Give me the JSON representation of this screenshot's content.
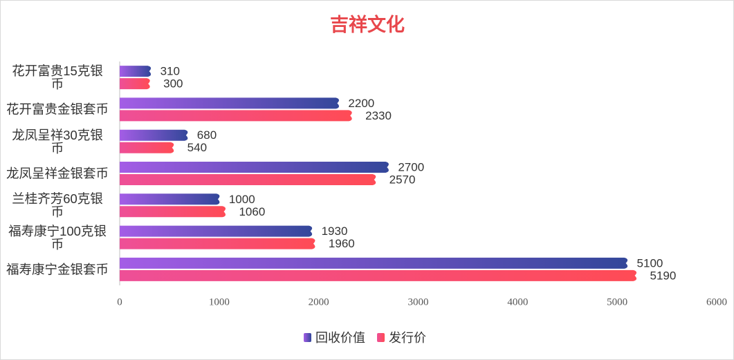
{
  "chart_data": {
    "type": "bar",
    "orientation": "horizontal",
    "title": "吉祥文化",
    "categories": [
      "花开富贵15克银币",
      "花开富贵金银套币",
      "龙凤呈祥30克银币",
      "龙凤呈祥金银套币",
      "兰桂齐芳60克银币",
      "福寿康宁100克银币",
      "福寿康宁金银套币"
    ],
    "series": [
      {
        "name": "回收价值",
        "gradient": [
          "#a45de6",
          "#33479a"
        ],
        "values": [
          310,
          2200,
          680,
          2700,
          1000,
          1930,
          5100
        ]
      },
      {
        "name": "发行价",
        "gradient": [
          "#ee4f97",
          "#ff4b55"
        ],
        "values": [
          300,
          2330,
          540,
          2570,
          1060,
          1960,
          5190
        ]
      }
    ],
    "xlim": [
      0,
      6000
    ],
    "xticks": [
      0,
      1000,
      2000,
      3000,
      4000,
      5000,
      6000
    ],
    "legend": "bottom"
  }
}
